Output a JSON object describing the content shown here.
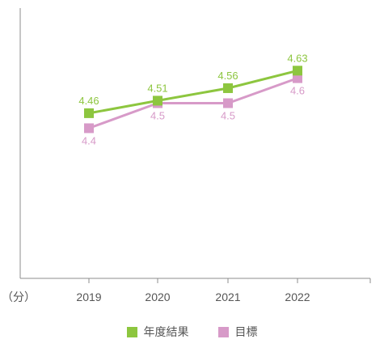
{
  "colors": {
    "result": "#8dc63f",
    "target": "#d79ac8",
    "axis": "#8c8c8c",
    "tick_text": "#555555"
  },
  "chart_data": {
    "type": "line",
    "title": "",
    "xlabel": "",
    "ylabel": "（分）",
    "categories": [
      "2019",
      "2020",
      "2021",
      "2022"
    ],
    "ylim": [
      3.8,
      4.88
    ],
    "grid": false,
    "legend_position": "bottom",
    "series": [
      {
        "name": "年度結果",
        "values": [
          4.46,
          4.51,
          4.56,
          4.63
        ],
        "labels": [
          "4.46",
          "4.51",
          "4.56",
          "4.63"
        ],
        "label_position": "above",
        "color": "#8dc63f"
      },
      {
        "name": "目標",
        "values": [
          4.4,
          4.5,
          4.5,
          4.6
        ],
        "labels": [
          "4.4",
          "4.5",
          "4.5",
          "4.6"
        ],
        "label_position": "below",
        "color": "#d79ac8"
      }
    ]
  }
}
